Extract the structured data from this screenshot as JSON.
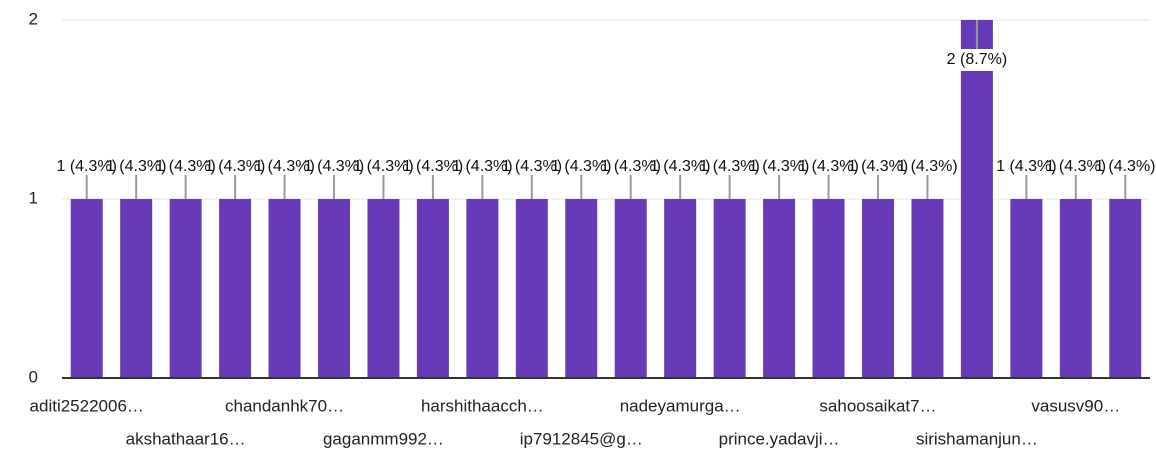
{
  "chart_data": {
    "type": "bar",
    "categories": [
      "aditi2522006…",
      null,
      "akshathaar16…",
      null,
      "chandanhk70…",
      null,
      "gaganmm992…",
      null,
      "harshithaacch…",
      null,
      "ip7912845@g…",
      null,
      "nadeyamurga…",
      null,
      "prince.yadavji…",
      null,
      "sahoosaikat7…",
      null,
      "sirishamanjun…",
      null,
      "vasusv90…",
      null
    ],
    "values": [
      1,
      1,
      1,
      1,
      1,
      1,
      1,
      1,
      1,
      1,
      1,
      1,
      1,
      1,
      1,
      1,
      1,
      1,
      2,
      1,
      1,
      1
    ],
    "value_labels": [
      "1 (4.3%)",
      "1 (4.3%)",
      "1 (4.3%)",
      "1 (4.3%)",
      "1 (4.3%)",
      "1 (4.3%)",
      "1 (4.3%)",
      "1 (4.3%)",
      "1 (4.3%)",
      "1 (4.3%)",
      "1 (4.3%)",
      "1 (4.3%)",
      "1 (4.3%)",
      "1 (4.3%)",
      "1 (4.3%)",
      "1 (4.3%)",
      "1 (4.3%)",
      "1 (4.3%)",
      "2 (8.7%)",
      "1 (4.3%)",
      "1 (4.3%)",
      "1 (4.3%)"
    ],
    "color": "#673ab7",
    "ylim": [
      0,
      2
    ],
    "yticks": [
      0,
      1,
      2
    ],
    "grid": true
  }
}
